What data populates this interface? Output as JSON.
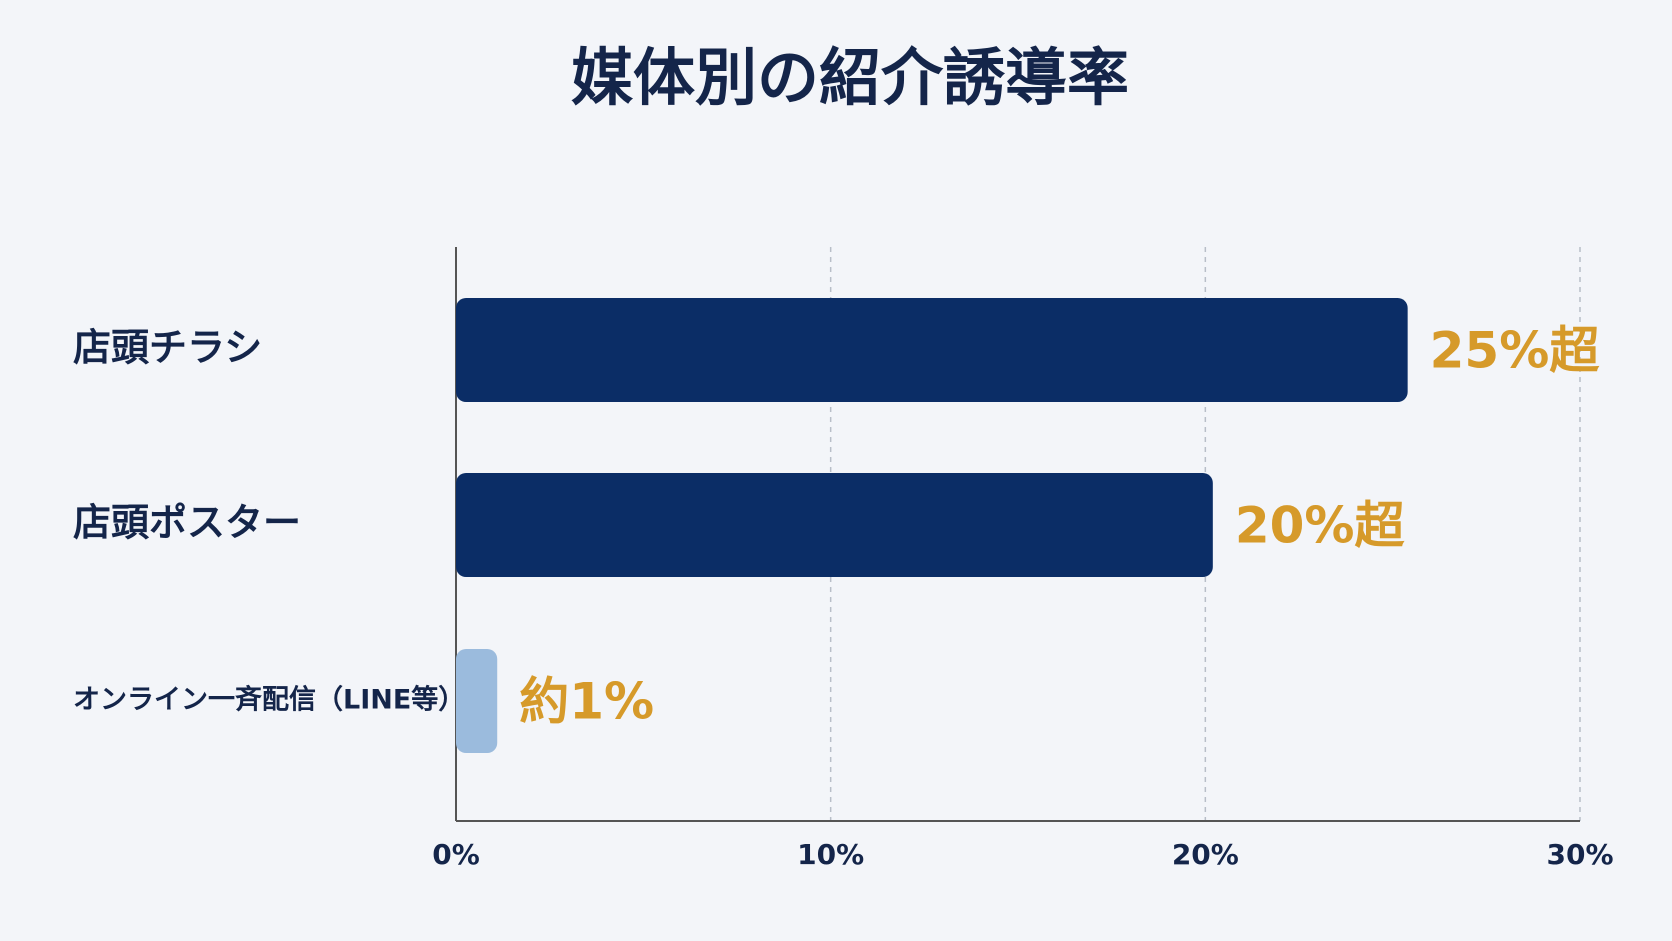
{
  "chart_data": {
    "type": "bar",
    "orientation": "horizontal",
    "title": "媒体別の紹介誘導率",
    "categories": [
      "店頭チラシ",
      "店頭ポスター",
      "オンライン一斉配信（LINE等）"
    ],
    "values": [
      25.4,
      20.2,
      1.1
    ],
    "value_labels": [
      "25%超",
      "20%超",
      "約1%"
    ],
    "colors": [
      "#0b2d66",
      "#0b2d66",
      "#9bbbdd"
    ],
    "xlim": [
      0,
      30
    ],
    "xticks": [
      {
        "value": 0,
        "label": "0%"
      },
      {
        "value": 10,
        "label": "10%"
      },
      {
        "value": 20,
        "label": "20%"
      },
      {
        "value": 30,
        "label": "30%"
      }
    ],
    "grid": true
  }
}
